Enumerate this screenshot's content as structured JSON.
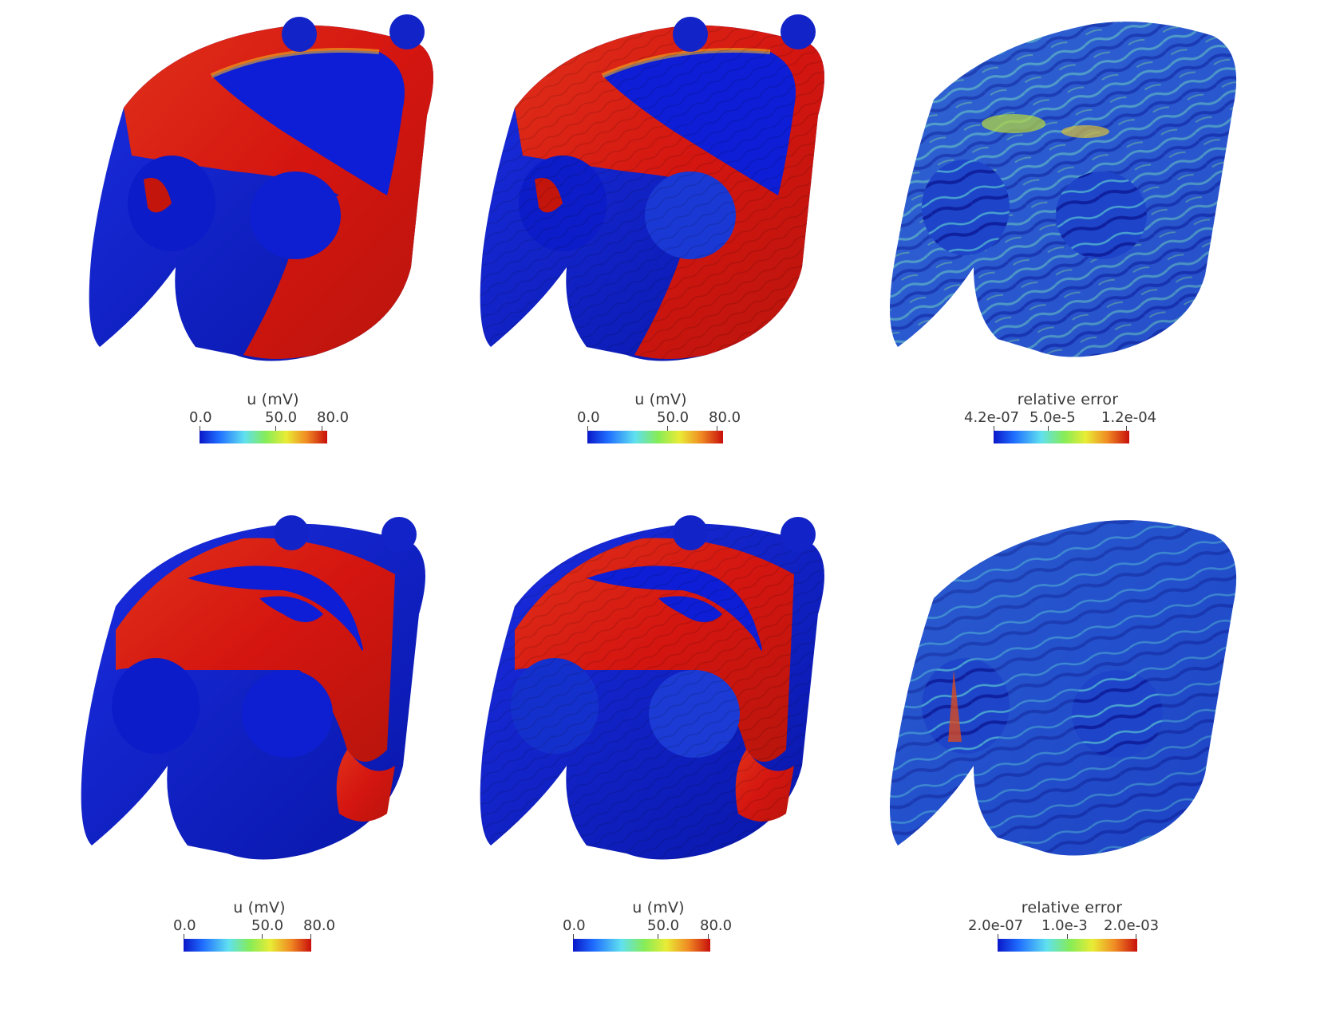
{
  "colors": {
    "low": "#0b1fd9",
    "high": "#d61812",
    "mid": "#7ee04a",
    "ramp": [
      "#0a17c8",
      "#1f6dff",
      "#5fe0f0",
      "#86ec57",
      "#e9ec35",
      "#f08a23",
      "#c80f0b"
    ]
  },
  "panels": [
    {
      "row": 1,
      "col": 1,
      "kind": "u",
      "colorbar": {
        "title": "u (mV)",
        "ticks": [
          "0.0",
          "50.0",
          "80.0"
        ]
      }
    },
    {
      "row": 1,
      "col": 2,
      "kind": "u",
      "colorbar": {
        "title": "u (mV)",
        "ticks": [
          "0.0",
          "50.0",
          "80.0"
        ]
      }
    },
    {
      "row": 1,
      "col": 3,
      "kind": "error",
      "colorbar": {
        "title": "relative error",
        "ticks": [
          "4.2e-07",
          "5.0e-5",
          "1.2e-04"
        ]
      }
    },
    {
      "row": 2,
      "col": 1,
      "kind": "u",
      "colorbar": {
        "title": "u (mV)",
        "ticks": [
          "0.0",
          "50.0",
          "80.0"
        ]
      }
    },
    {
      "row": 2,
      "col": 2,
      "kind": "u",
      "colorbar": {
        "title": "u (mV)",
        "ticks": [
          "0.0",
          "50.0",
          "80.0"
        ]
      }
    },
    {
      "row": 2,
      "col": 3,
      "kind": "error",
      "colorbar": {
        "title": "relative error",
        "ticks": [
          "2.0e-07",
          "1.0e-3",
          "2.0e-03"
        ]
      }
    }
  ]
}
